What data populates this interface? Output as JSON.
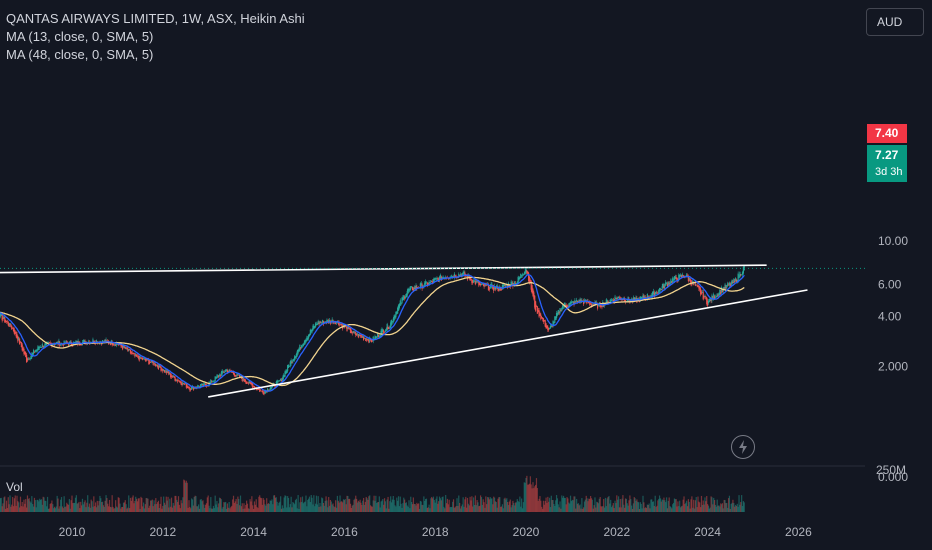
{
  "legend": {
    "title": "QANTAS AIRWAYS LIMITED, 1W, ASX, Heikin Ashi",
    "ma1": "MA (13, close, 0, SMA, 5)",
    "ma2": "MA (48, close, 0, SMA, 5)"
  },
  "currency": "AUD",
  "volume_label": "Vol",
  "last_price": "7.40",
  "close_price": "7.27",
  "countdown": "3d 3h",
  "colors": {
    "background": "#131722",
    "up": "#26a69a",
    "down": "#ef5350",
    "ma_fast": "#2962ff",
    "ma_slow": "#f2d48f",
    "trend": "#ffffff"
  },
  "chart_data": {
    "type": "candlestick",
    "price_axis": {
      "ticks": [
        0,
        2,
        4,
        6,
        10
      ],
      "tick_labels": [
        "0.000",
        "2.000",
        "4.00",
        "6.00",
        "10.00"
      ],
      "scale": "log"
    },
    "volume_axis": {
      "tick_label": "250M"
    },
    "x_axis": {
      "tick_labels": [
        "2010",
        "2012",
        "2014",
        "2016",
        "2018",
        "2020",
        "2022",
        "2024",
        "2026"
      ]
    },
    "series": [
      {
        "name": "Heikin Ashi",
        "x": [
          2008.3,
          2008.7,
          2009.0,
          2009.3,
          2009.6,
          2010.0,
          2010.5,
          2011.0,
          2011.4,
          2011.8,
          2012.2,
          2012.6,
          2013.0,
          2013.4,
          2013.8,
          2014.2,
          2014.6,
          2015.0,
          2015.4,
          2015.8,
          2016.2,
          2016.6,
          2017.0,
          2017.4,
          2017.8,
          2018.2,
          2018.6,
          2019.0,
          2019.4,
          2019.8,
          2020.0,
          2020.2,
          2020.5,
          2020.8,
          2021.2,
          2021.6,
          2022.0,
          2022.4,
          2022.8,
          2023.2,
          2023.5,
          2023.8,
          2024.0,
          2024.3,
          2024.6,
          2024.8
        ],
        "close": [
          4.3,
          3.4,
          2.2,
          2.7,
          2.8,
          2.8,
          2.9,
          2.8,
          2.3,
          2.1,
          1.7,
          1.4,
          1.5,
          1.9,
          1.6,
          1.3,
          1.6,
          2.6,
          3.7,
          3.8,
          3.2,
          2.9,
          3.6,
          5.6,
          6.0,
          6.6,
          6.8,
          5.9,
          5.7,
          6.2,
          7.3,
          4.5,
          3.3,
          4.6,
          4.9,
          4.6,
          5.1,
          4.9,
          5.3,
          6.3,
          6.7,
          5.6,
          4.8,
          5.6,
          6.2,
          7.3
        ]
      },
      {
        "name": "MA (13, close, 0, SMA, 5)",
        "color": "#2962ff"
      },
      {
        "name": "MA (48, close, 0, SMA, 5)",
        "color": "#f2d48f"
      }
    ],
    "trendlines": [
      {
        "x": [
          2008.0,
          2025.3
        ],
        "y": [
          6.9,
          7.55
        ]
      },
      {
        "x": [
          2013.0,
          2026.2
        ],
        "y": [
          1.2,
          5.6
        ]
      }
    ],
    "ylim": [
      0,
      10.5
    ],
    "xlim": [
      2008.0,
      2027.5
    ],
    "grid": false,
    "legend": "top-left"
  }
}
